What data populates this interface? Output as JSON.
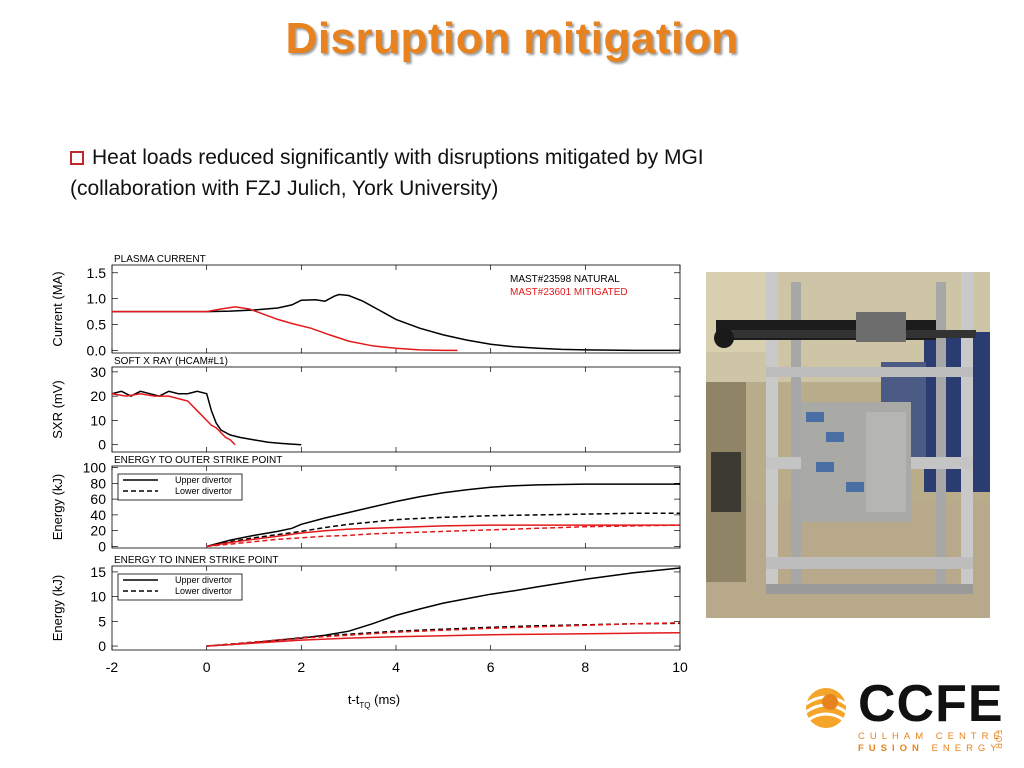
{
  "slide": {
    "title": "Disruption mitigation",
    "bullet_line1": "Heat loads reduced significantly with disruptions mitigated by MGI",
    "bullet_line2": "(collaboration with FZJ Julich, York University)"
  },
  "logo": {
    "name": "CCFE",
    "line1": "CULHAM CENTRE",
    "line2_bold": "FUSION",
    "line2_rest": " ENERGY",
    "side": "FOR",
    "color": "#e8821e"
  },
  "photo": {
    "icon": "mgi-valve-rig-photo"
  },
  "colors": {
    "title": "#e8821e",
    "natural": "#000000",
    "mitigated": "#e3191b",
    "bullet_box": "#c0282a"
  },
  "chart_data": [
    {
      "type": "line",
      "title": "PLASMA CURRENT",
      "ylabel": "Current (MA)",
      "xlim": [
        -2,
        10
      ],
      "ylim": [
        -0.05,
        1.65
      ],
      "yticks": [
        "1.5",
        "1.0",
        "0.5",
        "0.0"
      ],
      "legend": [
        "MAST#23598 NATURAL",
        "MAST#23601 MITIGATED"
      ],
      "legend_position": "top-right",
      "series": [
        {
          "name": "MAST#23598 NATURAL",
          "color": "#000000",
          "dash": "solid",
          "x": [
            -2,
            -1,
            0,
            0.5,
            1,
            1.5,
            1.8,
            2,
            2.3,
            2.5,
            2.7,
            2.8,
            3,
            3.3,
            3.6,
            4,
            4.5,
            5,
            5.5,
            6,
            6.5,
            7,
            7.5,
            8,
            9,
            10
          ],
          "y": [
            0.75,
            0.75,
            0.75,
            0.76,
            0.78,
            0.82,
            0.88,
            0.97,
            0.98,
            0.95,
            1.05,
            1.08,
            1.06,
            0.95,
            0.8,
            0.6,
            0.43,
            0.3,
            0.2,
            0.12,
            0.07,
            0.04,
            0.02,
            0.01,
            0.0,
            0.0
          ]
        },
        {
          "name": "MAST#23601 MITIGATED",
          "color": "#e3191b",
          "dash": "solid",
          "x": [
            -2,
            -1,
            0,
            0.3,
            0.6,
            0.9,
            1.2,
            1.5,
            1.8,
            2.2,
            2.6,
            3,
            3.5,
            4,
            4.5,
            5,
            5.3
          ],
          "y": [
            0.75,
            0.75,
            0.75,
            0.8,
            0.84,
            0.8,
            0.7,
            0.6,
            0.52,
            0.43,
            0.3,
            0.18,
            0.09,
            0.04,
            0.01,
            0.0,
            0.0
          ]
        }
      ]
    },
    {
      "type": "line",
      "title": "SOFT X RAY (HCAM#L1)",
      "ylabel": "SXR (mV)",
      "xlim": [
        -2,
        10
      ],
      "ylim": [
        -3,
        32
      ],
      "yticks": [
        "30",
        "20",
        "10",
        "0"
      ],
      "series": [
        {
          "name": "MAST#23598 NATURAL",
          "color": "#000000",
          "dash": "solid",
          "x": [
            -2,
            -1.8,
            -1.6,
            -1.4,
            -1.2,
            -1,
            -0.8,
            -0.6,
            -0.4,
            -0.2,
            0,
            0.1,
            0.2,
            0.3,
            0.5,
            0.7,
            1,
            1.3,
            1.6,
            2
          ],
          "y": [
            21,
            22,
            20,
            22,
            21,
            20,
            22,
            21,
            21,
            22,
            21,
            14,
            9,
            6,
            4,
            3,
            2,
            1,
            0.5,
            0
          ]
        },
        {
          "name": "MAST#23601 MITIGATED",
          "color": "#e3191b",
          "dash": "solid",
          "x": [
            -2,
            -1.7,
            -1.4,
            -1.1,
            -0.8,
            -0.6,
            -0.4,
            -0.2,
            0,
            0.1,
            0.2,
            0.3,
            0.4,
            0.5,
            0.6
          ],
          "y": [
            21,
            20,
            21,
            20,
            20,
            19,
            18,
            14,
            10,
            8,
            7,
            5,
            3,
            2,
            0
          ]
        }
      ]
    },
    {
      "type": "line",
      "title": "ENERGY TO OUTER STRIKE POINT",
      "ylabel": "Energy (kJ)",
      "xlim": [
        -2,
        10
      ],
      "ylim": [
        -2,
        102
      ],
      "yticks": [
        "100",
        "80",
        "60",
        "40",
        "20",
        "0"
      ],
      "legend": [
        "Upper divertor",
        "Lower divertor"
      ],
      "legend_position": "top-left",
      "series": [
        {
          "name": "Upper divertor",
          "color": "#000000",
          "dash": "solid",
          "x": [
            0,
            0.5,
            1,
            1.5,
            1.8,
            2,
            2.5,
            3,
            3.5,
            4,
            4.5,
            5,
            5.5,
            6,
            6.5,
            7,
            8,
            9,
            10
          ],
          "y": [
            0,
            8,
            14,
            19,
            23,
            28,
            36,
            43,
            50,
            57,
            63,
            68,
            72,
            75,
            77,
            78,
            79,
            79,
            79
          ]
        },
        {
          "name": "Lower divertor",
          "color": "#000000",
          "dash": "dashed",
          "x": [
            0,
            0.5,
            1,
            1.5,
            2,
            2.5,
            3,
            3.5,
            4,
            5,
            6,
            7,
            8,
            9,
            10
          ],
          "y": [
            0,
            6,
            11,
            15,
            19,
            24,
            28,
            31,
            34,
            37,
            39,
            40,
            41,
            42,
            42
          ]
        },
        {
          "name": "Upper divertor",
          "color": "#e3191b",
          "dash": "solid",
          "x": [
            0,
            0.5,
            1,
            1.5,
            2,
            2.5,
            3,
            3.5,
            4,
            5,
            6,
            7,
            8,
            9,
            10
          ],
          "y": [
            0,
            5,
            9,
            13,
            17,
            20,
            22,
            23,
            24,
            26,
            27,
            27,
            27,
            27,
            27
          ]
        },
        {
          "name": "Lower divertor",
          "color": "#e3191b",
          "dash": "dashed",
          "x": [
            0,
            0.5,
            1,
            1.5,
            2,
            2.5,
            3,
            3.5,
            4,
            5,
            6,
            7,
            8,
            9,
            10
          ],
          "y": [
            0,
            3,
            6,
            9,
            11,
            13,
            14,
            16,
            17,
            19,
            21,
            23,
            25,
            26,
            27
          ]
        }
      ]
    },
    {
      "type": "line",
      "title": "ENERGY TO INNER STRIKE POINT",
      "ylabel": "Energy (kJ)",
      "xlim": [
        -2,
        10
      ],
      "ylim": [
        -0.8,
        16.2
      ],
      "yticks": [
        "15",
        "10",
        "5",
        "0"
      ],
      "xticks": [
        "-2",
        "0",
        "2",
        "4",
        "6",
        "8",
        "10"
      ],
      "xlabel": "t-t",
      "xlabel_sub": "TQ",
      "xlabel_unit": "(ms)",
      "legend": [
        "Upper divertor",
        "Lower divertor"
      ],
      "legend_position": "top-left",
      "series": [
        {
          "name": "Upper divertor",
          "color": "#000000",
          "dash": "solid",
          "x": [
            0,
            0.5,
            1,
            1.5,
            2,
            2.5,
            3,
            3.5,
            4,
            4.5,
            5,
            5.5,
            6,
            6.5,
            7,
            8,
            9,
            10
          ],
          "y": [
            0,
            0.3,
            0.7,
            1.2,
            1.6,
            2.2,
            3,
            4.5,
            6.2,
            7.5,
            8.7,
            9.6,
            10.5,
            11.2,
            12,
            13.5,
            14.8,
            15.8
          ]
        },
        {
          "name": "Lower divertor",
          "color": "#000000",
          "dash": "dashed",
          "x": [
            0,
            0.5,
            1,
            1.5,
            2,
            3,
            4,
            5,
            6,
            7,
            8,
            9,
            10
          ],
          "y": [
            0,
            0.4,
            0.8,
            1.2,
            1.7,
            2.4,
            3,
            3.4,
            3.8,
            4.1,
            4.3,
            4.5,
            4.6
          ]
        },
        {
          "name": "Upper divertor",
          "color": "#e3191b",
          "dash": "solid",
          "x": [
            0,
            0.5,
            1,
            1.5,
            2,
            3,
            4,
            5,
            6,
            7,
            8,
            9,
            10
          ],
          "y": [
            0,
            0.3,
            0.6,
            0.9,
            1.2,
            1.6,
            1.9,
            2.1,
            2.3,
            2.4,
            2.5,
            2.6,
            2.7
          ]
        },
        {
          "name": "Lower divertor",
          "color": "#e3191b",
          "dash": "dashed",
          "x": [
            0,
            0.5,
            1,
            1.5,
            2,
            3,
            4,
            5,
            6,
            7,
            8,
            9,
            10
          ],
          "y": [
            0,
            0.4,
            0.8,
            1.2,
            1.6,
            2.2,
            2.8,
            3.2,
            3.6,
            3.9,
            4.2,
            4.5,
            4.7
          ]
        }
      ]
    }
  ]
}
